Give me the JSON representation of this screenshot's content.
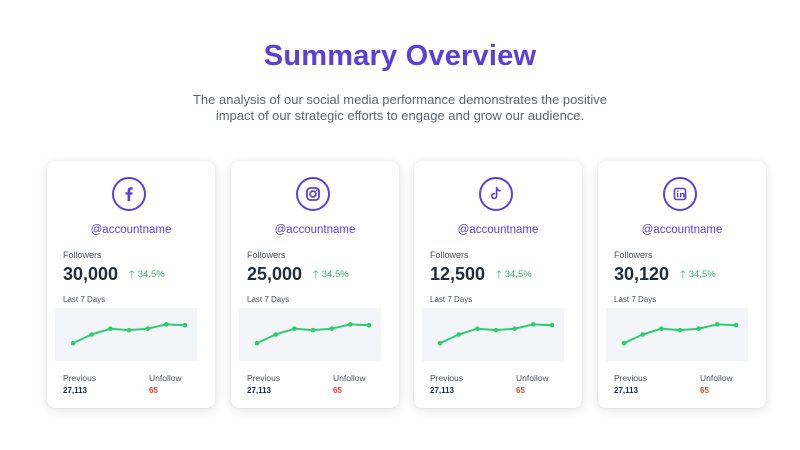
{
  "header": {
    "title": "Summary Overview",
    "subtitle": "The analysis of our social media performance demonstrates the positive impact of our strategic efforts to engage and grow our audience."
  },
  "colors": {
    "accent": "#5b3fd8",
    "growth": "#2fae6a",
    "unfollow": "#e8402f",
    "line": "#2ecc71"
  },
  "labels": {
    "followers": "Followers",
    "last7": "Last 7 Days",
    "previous": "Previous",
    "unfollow": "Unfollow"
  },
  "cards": [
    {
      "platform_icon": "facebook-icon",
      "account": "@accountname",
      "followers": "30,000",
      "growth": "34,5%",
      "previous": "27,113",
      "unfollow": "65",
      "trend": [
        2,
        5,
        7,
        6.5,
        7,
        8.5,
        8.2
      ]
    },
    {
      "platform_icon": "instagram-icon",
      "account": "@accountname",
      "followers": "25,000",
      "growth": "34,5%",
      "previous": "27,113",
      "unfollow": "65",
      "trend": [
        2,
        5,
        7,
        6.5,
        7,
        8.5,
        8.2
      ]
    },
    {
      "platform_icon": "tiktok-icon",
      "account": "@accountname",
      "followers": "12,500",
      "growth": "34,5%",
      "previous": "27,113",
      "unfollow": "65",
      "trend": [
        2,
        5,
        7,
        6.5,
        7,
        8.5,
        8.2
      ]
    },
    {
      "platform_icon": "linkedin-icon",
      "account": "@accountname",
      "followers": "30,120",
      "growth": "34,5%",
      "previous": "27,113",
      "unfollow": "65",
      "trend": [
        2,
        5,
        7,
        6.5,
        7,
        8.5,
        8.2
      ]
    }
  ]
}
